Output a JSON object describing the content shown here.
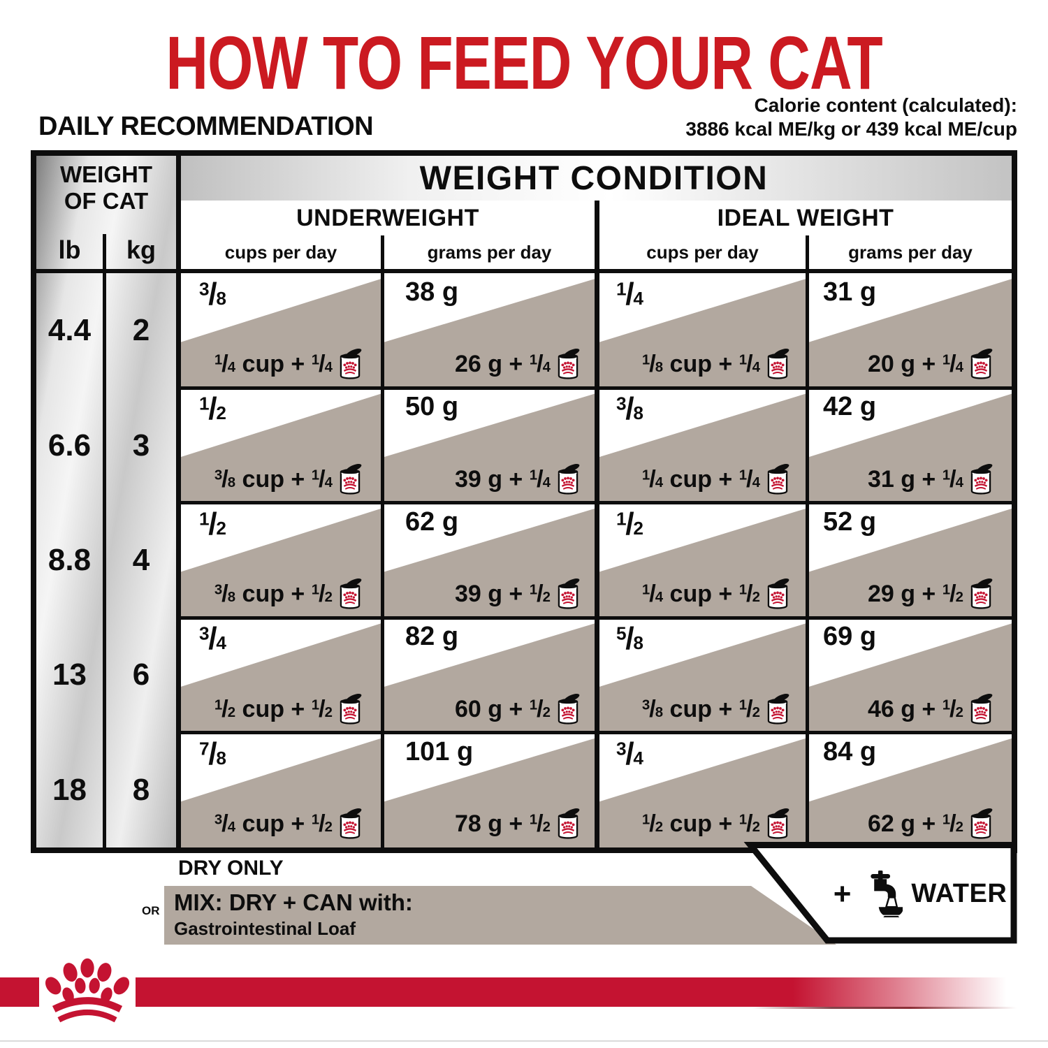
{
  "title": "HOW TO FEED YOUR CAT",
  "subtitle": "DAILY RECOMMENDATION",
  "calories": {
    "line1": "Calorie content (calculated):",
    "line2": "3886 kcal ME/kg or 439 kcal ME/cup"
  },
  "colors": {
    "brand_red": "#c41331",
    "title_red": "#cb1a21",
    "band_tan": "#b2a89f",
    "ink": "#0d0d0d"
  },
  "table": {
    "weight_header": "WEIGHT OF CAT",
    "unit_lb": "lb",
    "unit_kg": "kg",
    "condition_header": "WEIGHT CONDITION",
    "conditions": [
      "UNDERWEIGHT",
      "IDEAL WEIGHT"
    ],
    "col_cups": "cups per day",
    "col_grams": "grams per day",
    "rows": [
      {
        "lb": "4.4",
        "kg": "2",
        "underweight": {
          "cups_dry": "3/8",
          "cups_mix": "1/4 cup + 1/4",
          "grams_dry": "38 g",
          "grams_mix": "26 g + 1/4"
        },
        "ideal": {
          "cups_dry": "1/4",
          "cups_mix": "1/8 cup + 1/4",
          "grams_dry": "31 g",
          "grams_mix": "20 g + 1/4"
        }
      },
      {
        "lb": "6.6",
        "kg": "3",
        "underweight": {
          "cups_dry": "1/2",
          "cups_mix": "3/8 cup + 1/4",
          "grams_dry": "50 g",
          "grams_mix": "39 g + 1/4"
        },
        "ideal": {
          "cups_dry": "3/8",
          "cups_mix": "1/4 cup + 1/4",
          "grams_dry": "42 g",
          "grams_mix": "31 g + 1/4"
        }
      },
      {
        "lb": "8.8",
        "kg": "4",
        "underweight": {
          "cups_dry": "1/2",
          "cups_mix": "3/8 cup + 1/2",
          "grams_dry": "62 g",
          "grams_mix": "39 g + 1/2"
        },
        "ideal": {
          "cups_dry": "1/2",
          "cups_mix": "1/4 cup + 1/2",
          "grams_dry": "52 g",
          "grams_mix": "29 g + 1/2"
        }
      },
      {
        "lb": "13",
        "kg": "6",
        "underweight": {
          "cups_dry": "3/4",
          "cups_mix": "1/2 cup + 1/2",
          "grams_dry": "82 g",
          "grams_mix": "60 g + 1/2"
        },
        "ideal": {
          "cups_dry": "5/8",
          "cups_mix": "3/8 cup + 1/2",
          "grams_dry": "69 g",
          "grams_mix": "46 g + 1/2"
        }
      },
      {
        "lb": "18",
        "kg": "8",
        "underweight": {
          "cups_dry": "7/8",
          "cups_mix": "3/4 cup + 1/2",
          "grams_dry": "101 g",
          "grams_mix": "78 g + 1/2"
        },
        "ideal": {
          "cups_dry": "3/4",
          "cups_mix": "1/2 cup + 1/2",
          "grams_dry": "84 g",
          "grams_mix": "62 g + 1/2"
        }
      }
    ]
  },
  "legend": {
    "dry_only": "DRY ONLY",
    "or": "OR",
    "mix_title": "MIX: DRY + CAN with:",
    "mix_subtitle": "Gastrointestinal Loaf",
    "water_plus": "+",
    "water_label": "WATER"
  }
}
